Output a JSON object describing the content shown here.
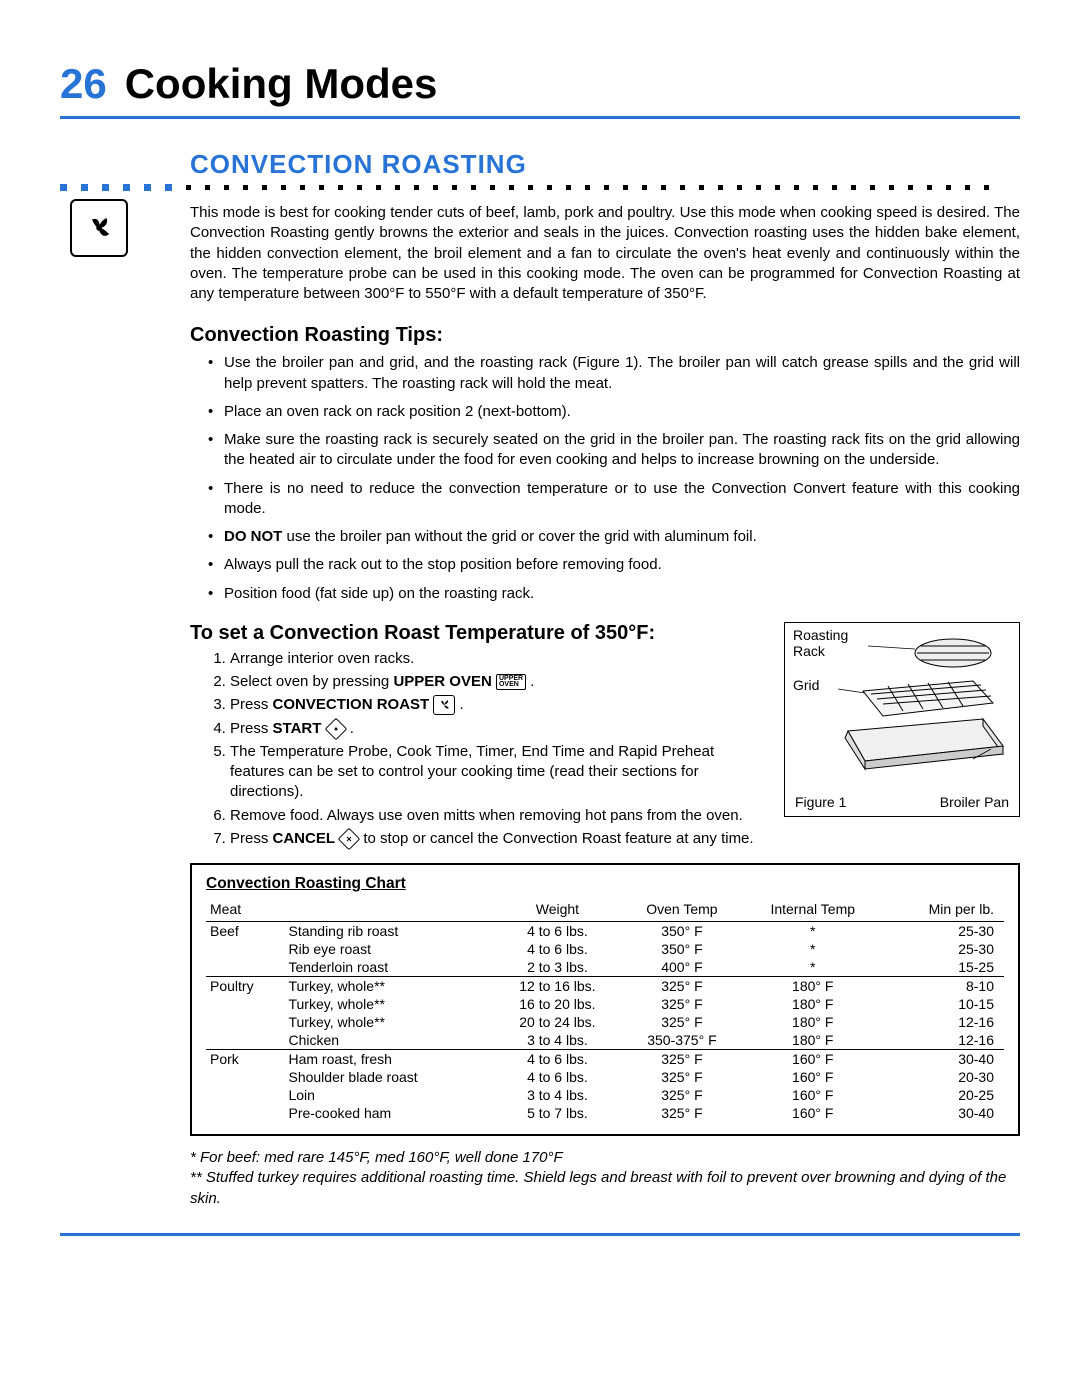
{
  "accent_color": "#2873d6",
  "header": {
    "page_number": "26",
    "title": "Cooking Modes"
  },
  "section": {
    "title": "CONVECTION ROASTING",
    "intro": "This mode is best for cooking tender cuts of beef, lamb, pork and poultry. Use this mode when cooking speed is desired. The Convection Roasting gently browns the exterior and seals in the juices. Convection roasting uses the hidden bake element, the hidden convection element, the broil element and a fan to circulate the oven's heat evenly and continuously within the oven. The temperature probe can be used in this cooking mode. The oven can be programmed for Convection Roasting at any temperature between 300°F to 550°F with a default temperature of 350°F."
  },
  "tips": {
    "heading": "Convection Roasting Tips:",
    "items": [
      "Use the broiler pan and grid, and the roasting rack (Figure 1). The broiler pan will catch grease spills and the grid will help prevent spatters. The roasting rack will hold the meat.",
      "Place an oven rack on rack position 2 (next-bottom).",
      "Make sure the roasting rack is securely seated on the grid in the broiler pan. The roasting rack fits on the grid allowing the heated air to circulate under the food for even cooking and helps to increase browning on the underside.",
      "There is no need to reduce the convection temperature or to use the Convection Convert feature with this cooking mode.",
      "<b>DO NOT</b> use the broiler pan without the grid or cover the grid with aluminum foil.",
      "Always pull the rack out to the stop position before removing food.",
      "Position food (fat side up) on the roasting rack."
    ]
  },
  "set": {
    "heading": "To set a Convection Roast Temperature of 350°F:",
    "step1": "Arrange interior oven racks.",
    "step2_pre": "Select oven by pressing ",
    "step2_bold": "UPPER OVEN",
    "step3_pre": "Press ",
    "step3_bold": "CONVECTION ROAST",
    "step4_pre": "Press ",
    "step4_bold": "START",
    "step5": "The Temperature Probe, Cook Time, Timer, End Time and Rapid Preheat features can be set to control your cooking time (read their sections for directions).",
    "step6": "Remove food. Always use oven mitts when removing hot pans from the oven.",
    "step7_pre": "Press ",
    "step7_bold": "CANCEL",
    "step7_post": " to stop or cancel the Convection Roast feature at any time."
  },
  "figure": {
    "rack": "Roasting\nRack",
    "grid": "Grid",
    "caption": "Figure 1",
    "broiler": "Broiler Pan"
  },
  "chart": {
    "title": "Convection Roasting Chart",
    "columns": [
      "Meat",
      "",
      "Weight",
      "Oven Temp",
      "Internal Temp",
      "Min per lb."
    ],
    "rows": [
      {
        "cat": "Beef",
        "cut": "Standing rib roast",
        "wt": "4 to 6 lbs.",
        "ot": "350° F",
        "it": "*",
        "min": "25-30",
        "first": true
      },
      {
        "cat": "",
        "cut": "Rib eye roast",
        "wt": "4 to 6 lbs.",
        "ot": "350° F",
        "it": "*",
        "min": "25-30"
      },
      {
        "cat": "",
        "cut": "Tenderloin roast",
        "wt": "2 to 3 lbs.",
        "ot": "400° F",
        "it": "*",
        "min": "15-25"
      },
      {
        "cat": "Poultry",
        "cut": "Turkey, whole**",
        "wt": "12 to 16 lbs.",
        "ot": "325° F",
        "it": "180° F",
        "min": "8-10",
        "first": true
      },
      {
        "cat": "",
        "cut": "Turkey, whole**",
        "wt": "16 to 20 lbs.",
        "ot": "325° F",
        "it": "180° F",
        "min": "10-15"
      },
      {
        "cat": "",
        "cut": "Turkey, whole**",
        "wt": "20 to 24 lbs.",
        "ot": "325° F",
        "it": "180° F",
        "min": "12-16"
      },
      {
        "cat": "",
        "cut": "Chicken",
        "wt": "3 to 4 lbs.",
        "ot": "350-375° F",
        "it": "180° F",
        "min": "12-16"
      },
      {
        "cat": "Pork",
        "cut": "Ham roast, fresh",
        "wt": "4 to 6 lbs.",
        "ot": "325° F",
        "it": "160° F",
        "min": "30-40",
        "first": true
      },
      {
        "cat": "",
        "cut": "Shoulder blade roast",
        "wt": "4 to 6 lbs.",
        "ot": "325° F",
        "it": "160° F",
        "min": "20-30"
      },
      {
        "cat": "",
        "cut": "Loin",
        "wt": "3 to 4 lbs.",
        "ot": "325° F",
        "it": "160° F",
        "min": "20-25"
      },
      {
        "cat": "",
        "cut": "Pre-cooked ham",
        "wt": "5 to 7 lbs.",
        "ot": "325° F",
        "it": "160° F",
        "min": "30-40"
      }
    ]
  },
  "footnotes": {
    "f1": "* For beef: med rare 145°F, med 160°F, well done 170°F",
    "f2": "** Stuffed turkey requires additional roasting time. Shield legs and breast with foil to prevent over browning and dying of the skin."
  }
}
